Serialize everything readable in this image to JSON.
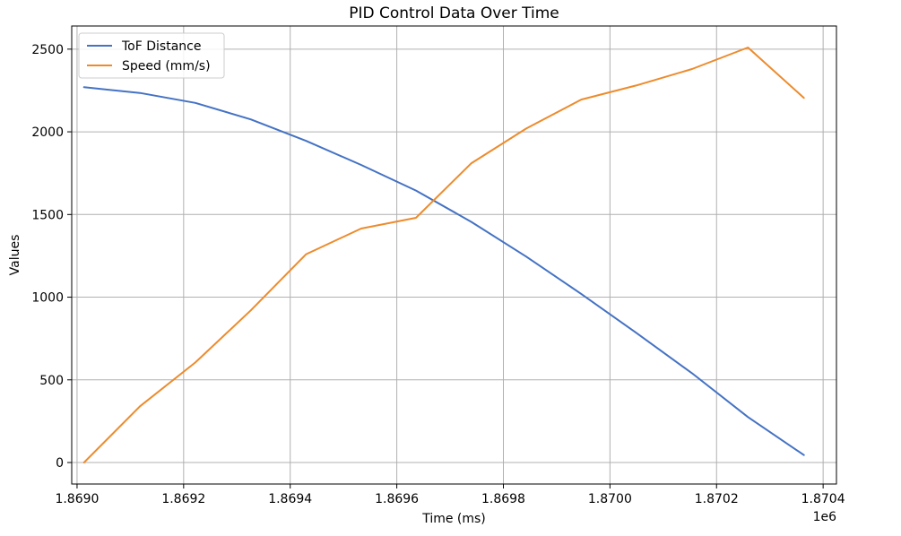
{
  "chart_data": {
    "type": "line",
    "title": "PID Control Data Over Time",
    "xlabel": "Time (ms)",
    "ylabel": "Values",
    "x_offset_label": "1e6",
    "xlim": [
      1868990,
      1870425
    ],
    "ylim": [
      -130,
      2640
    ],
    "xticks": [
      1869000,
      1869200,
      1869400,
      1869600,
      1869800,
      1870000,
      1870200,
      1870400
    ],
    "xtick_labels": [
      "1.8690",
      "1.8692",
      "1.8694",
      "1.8696",
      "1.8698",
      "1.8700",
      "1.8702",
      "1.8704"
    ],
    "yticks": [
      0,
      500,
      1000,
      1500,
      2000,
      2500
    ],
    "ytick_labels": [
      "0",
      "500",
      "1000",
      "1500",
      "2000",
      "2500"
    ],
    "grid": true,
    "legend_position": "upper-left",
    "series": [
      {
        "name": "ToF Distance",
        "color": "#4472c4",
        "x": [
          1869013,
          1869118,
          1869222,
          1869326,
          1869430,
          1869533,
          1869636,
          1869740,
          1869843,
          1869946,
          1870049,
          1870154,
          1870259,
          1870364
        ],
        "y": [
          2270,
          2235,
          2175,
          2075,
          1945,
          1800,
          1645,
          1455,
          1245,
          1020,
          785,
          540,
          275,
          45
        ]
      },
      {
        "name": "Speed (mm/s)",
        "color": "#ed8b2c",
        "x": [
          1869013,
          1869118,
          1869222,
          1869326,
          1869430,
          1869533,
          1869636,
          1869740,
          1869843,
          1869946,
          1870049,
          1870154,
          1870259,
          1870364
        ],
        "y": [
          0,
          340,
          605,
          920,
          1260,
          1415,
          1480,
          1810,
          2020,
          2195,
          2280,
          2380,
          2510,
          2205
        ]
      }
    ]
  }
}
